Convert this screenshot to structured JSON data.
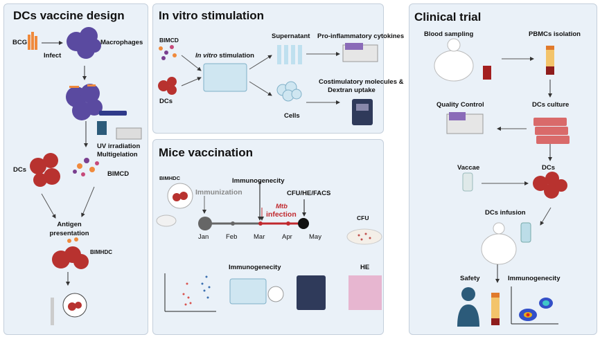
{
  "panels": {
    "design": {
      "title": "DCs vaccine design",
      "bcg": "BCG",
      "infect": "Infect",
      "macrophages": "Macrophages",
      "uv": "UV irradiation",
      "multigelation": "Multigelation",
      "dcs": "DCs",
      "bimcd": "BIMCD",
      "antigen": "Antigen",
      "presentation": "presentation",
      "bimhdc": "BIMHDC"
    },
    "invitro": {
      "title": "In vitro stimulation",
      "bimcd": "BIMCD",
      "dcs": "DCs",
      "stim_italic": "In vitro",
      "stim_rest": " stimulation",
      "supernatant": "Supernatant",
      "cytokines": "Pro-inflammatory cytokines",
      "cells": "Cells",
      "costim1": "Costimulatory molecules &",
      "costim2": "Dextran uptake"
    },
    "mice": {
      "title": "Mice vaccination",
      "bimhdc": "BIMHDC",
      "immunization": "Immunization",
      "immunogenecity_top": "Immunogenecity",
      "mtb": "Mtb",
      "infection": "infection",
      "cfu_he_facs": "CFU/HE/FACS",
      "months": [
        "Jan",
        "Feb",
        "Mar",
        "Apr",
        "May"
      ],
      "cfu": "CFU",
      "immunogenecity": "Immunogenecity",
      "he": "HE"
    },
    "clinical": {
      "title": "Clinical trial",
      "blood": "Blood sampling",
      "pbmcs": "PBMCs isolation",
      "qc": "Quality Control",
      "culture": "DCs culture",
      "vaccae": "Vaccae",
      "dcs": "DCs",
      "infusion": "DCs infusion",
      "safety": "Safety",
      "immunogenecity": "Immunogenecity"
    }
  },
  "colors": {
    "panel_bg": "#eaf1f8",
    "dc_red": "#b8322f",
    "macrophage": "#5a4aa0",
    "mtb_red": "#c0282d",
    "bcg_orange": "#f08a3c"
  }
}
